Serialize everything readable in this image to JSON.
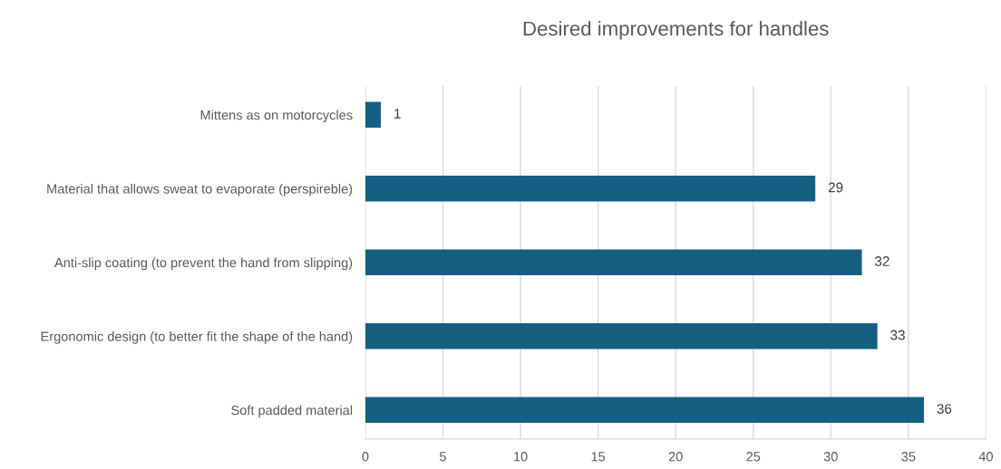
{
  "chart_data": {
    "type": "bar",
    "orientation": "horizontal",
    "title": "Desired improvements for handles",
    "categories": [
      "Mittens as on motorcycles",
      "Material that allows sweat to evaporate (perspireble)",
      "Anti-slip coating (to prevent the hand from slipping)",
      "Ergonomic design (to better fit the shape of the hand)",
      "Soft padded material"
    ],
    "values": [
      1,
      29,
      32,
      33,
      36
    ],
    "color": "#156082",
    "xlim": [
      0,
      40
    ],
    "xticks": [
      0,
      5,
      10,
      15,
      20,
      25,
      30,
      35,
      40
    ],
    "grid": "x",
    "data_labels": true
  }
}
